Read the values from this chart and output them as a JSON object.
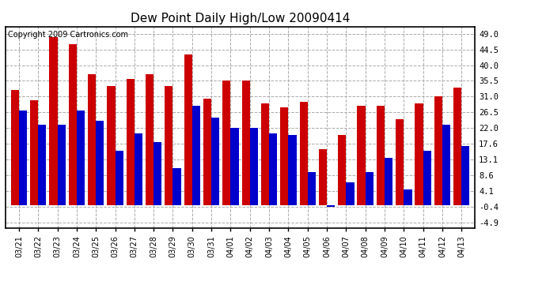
{
  "title": "Dew Point Daily High/Low 20090414",
  "copyright": "Copyright 2009 Cartronics.com",
  "dates": [
    "03/21",
    "03/22",
    "03/23",
    "03/24",
    "03/25",
    "03/26",
    "03/27",
    "03/28",
    "03/29",
    "03/30",
    "03/31",
    "04/01",
    "04/02",
    "04/03",
    "04/04",
    "04/05",
    "04/06",
    "04/07",
    "04/08",
    "04/09",
    "04/10",
    "04/11",
    "04/12",
    "04/13"
  ],
  "highs": [
    33.0,
    30.0,
    48.0,
    46.0,
    37.5,
    34.0,
    36.0,
    37.5,
    34.0,
    43.0,
    30.5,
    35.5,
    35.5,
    29.0,
    28.0,
    29.5,
    16.0,
    20.0,
    28.5,
    28.5,
    24.5,
    29.0,
    31.0,
    33.5
  ],
  "lows": [
    27.0,
    23.0,
    23.0,
    27.0,
    24.0,
    15.5,
    20.5,
    18.0,
    10.5,
    28.5,
    25.0,
    22.0,
    22.0,
    20.5,
    20.0,
    9.5,
    -0.5,
    6.5,
    9.5,
    13.5,
    4.5,
    15.5,
    23.0,
    17.0
  ],
  "high_color": "#cc0000",
  "low_color": "#0000cc",
  "bg_color": "#ffffff",
  "grid_color": "#aaaaaa",
  "yticks": [
    -4.9,
    -0.4,
    4.1,
    8.6,
    13.1,
    17.6,
    22.0,
    26.5,
    31.0,
    35.5,
    40.0,
    44.5,
    49.0
  ],
  "ymin": -6.5,
  "ymax": 51.0,
  "title_fontsize": 11,
  "copyright_fontsize": 7
}
